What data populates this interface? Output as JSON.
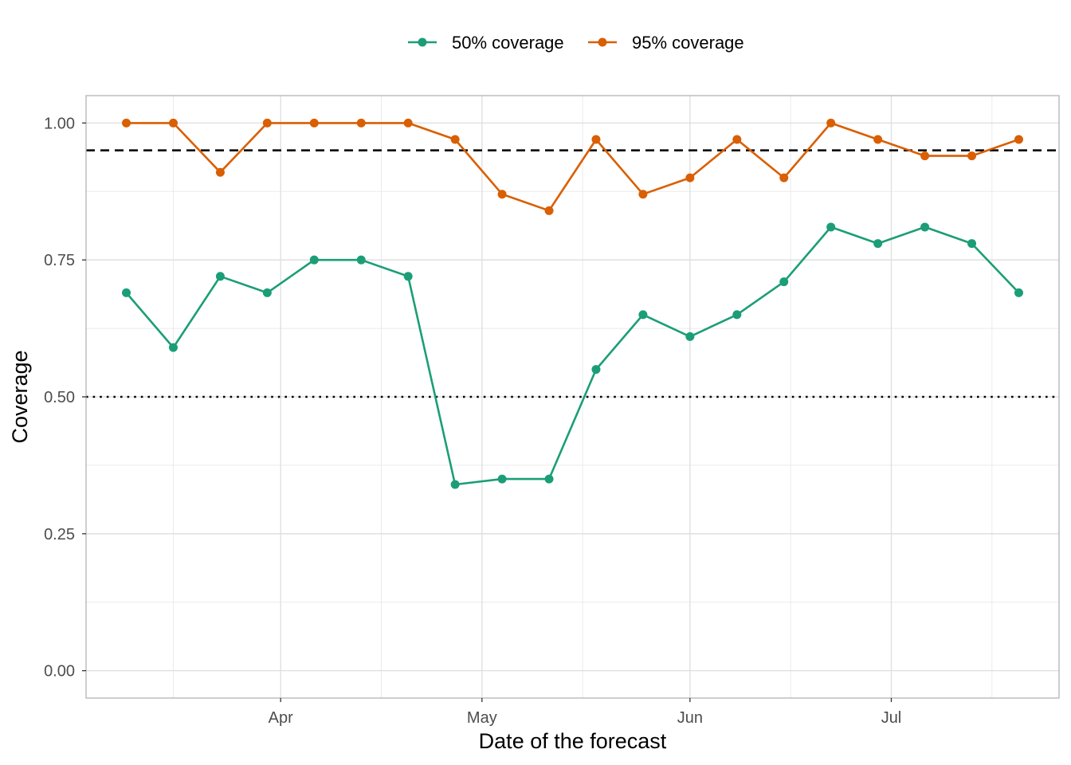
{
  "chart_data": {
    "type": "line",
    "xlabel": "Date of the forecast",
    "ylabel": "Coverage",
    "ylim": [
      -0.05,
      1.05
    ],
    "xlim": [
      "2020-03-03",
      "2020-07-26"
    ],
    "x_ticks": [
      {
        "date": "2020-04-01",
        "label": "Apr"
      },
      {
        "date": "2020-05-01",
        "label": "May"
      },
      {
        "date": "2020-06-01",
        "label": "Jun"
      },
      {
        "date": "2020-07-01",
        "label": "Jul"
      }
    ],
    "x_minor_ticks": [
      "2020-03-16",
      "2020-04-16",
      "2020-05-16",
      "2020-06-16",
      "2020-07-16"
    ],
    "y_ticks": [
      0.0,
      0.25,
      0.5,
      0.75,
      1.0
    ],
    "y_tick_labels": [
      "0.00",
      "0.25",
      "0.50",
      "0.75",
      "1.00"
    ],
    "y_minor_ticks": [
      0.125,
      0.375,
      0.625,
      0.875
    ],
    "grid": true,
    "legend_position": "top",
    "x": [
      "2020-03-09",
      "2020-03-16",
      "2020-03-23",
      "2020-03-30",
      "2020-04-06",
      "2020-04-13",
      "2020-04-20",
      "2020-04-27",
      "2020-05-04",
      "2020-05-11",
      "2020-05-18",
      "2020-05-25",
      "2020-06-01",
      "2020-06-08",
      "2020-06-15",
      "2020-06-22",
      "2020-06-29",
      "2020-07-06",
      "2020-07-13",
      "2020-07-20"
    ],
    "series": [
      {
        "name": "50% coverage",
        "color": "#1b9e77",
        "values": [
          0.69,
          0.59,
          0.72,
          0.69,
          0.75,
          0.75,
          0.72,
          0.34,
          0.35,
          0.35,
          0.55,
          0.65,
          0.61,
          0.65,
          0.71,
          0.81,
          0.78,
          0.81,
          0.78,
          0.69
        ]
      },
      {
        "name": "95% coverage",
        "color": "#d95f02",
        "values": [
          1.0,
          1.0,
          0.91,
          1.0,
          1.0,
          1.0,
          1.0,
          0.97,
          0.87,
          0.84,
          0.97,
          0.87,
          0.9,
          0.97,
          0.9,
          1.0,
          0.97,
          0.94,
          0.94,
          0.97
        ]
      }
    ],
    "reference_lines": [
      {
        "y": 0.95,
        "style": "dashed",
        "color": "#000000"
      },
      {
        "y": 0.5,
        "style": "dotted",
        "color": "#000000"
      }
    ]
  }
}
